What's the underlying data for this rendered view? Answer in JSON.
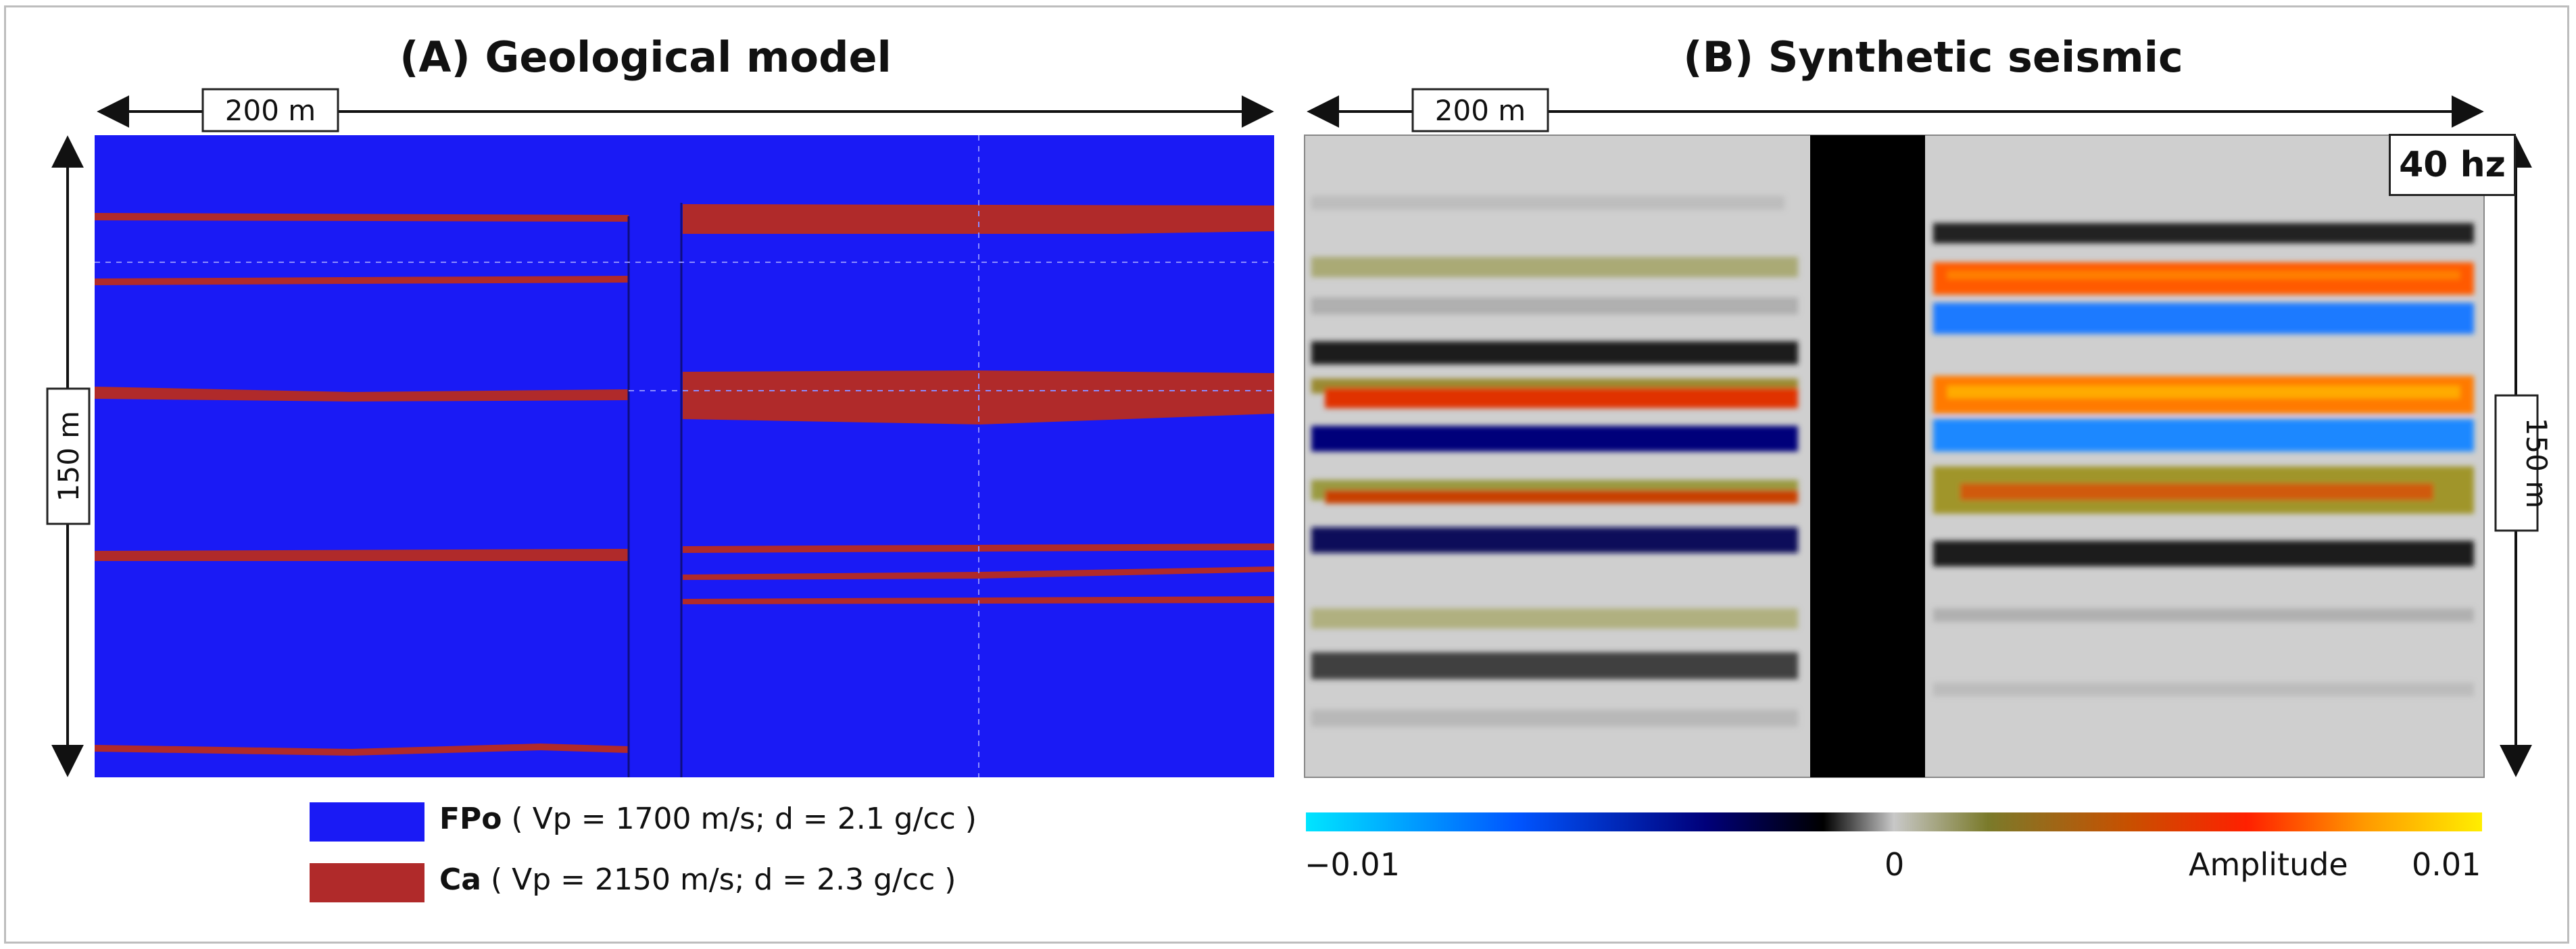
{
  "panel_a": {
    "title": "(A)  Geological model",
    "width_label": "200 m",
    "height_label": "150 m"
  },
  "panel_b": {
    "title": "(B)  Synthetic seismic",
    "width_label": "200 m",
    "height_label": "150 m",
    "frequency_label": "40 hz"
  },
  "legend": {
    "items": [
      {
        "name": "FPo",
        "props": "( Vp = 1700 m/s; d = 2.1 g/cc )",
        "color": "#1a1af5"
      },
      {
        "name": "Ca",
        "props": "( Vp = 2150 m/s; d = 2.3 g/cc )",
        "color": "#b02a2a"
      }
    ]
  },
  "colorbar": {
    "min_label": "−0.01",
    "mid_label": "0",
    "title": "Amplitude",
    "max_label": "0.01",
    "colors": [
      "#00e5ff",
      "#0055ff",
      "#00007a",
      "#000000",
      "#c8c8c8",
      "#7a7a2a",
      "#c85000",
      "#ff2000",
      "#ff9900",
      "#ffee00"
    ]
  },
  "colors": {
    "model_background": "#1a1af5",
    "model_layer": "#b02a2a",
    "gap_block": "#000000",
    "frame": "#bdbdbd"
  }
}
